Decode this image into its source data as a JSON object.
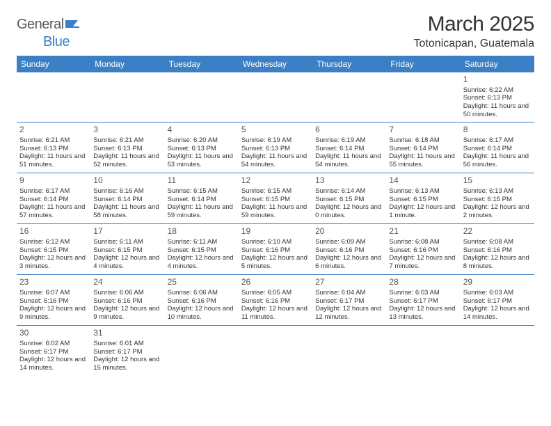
{
  "logo": {
    "text_gray": "General",
    "text_blue": "Blue"
  },
  "title": "March 2025",
  "location": "Totonicapan, Guatemala",
  "colors": {
    "header_bg": "#3b7fc4",
    "header_text": "#ffffff",
    "border": "#3b7fc4",
    "text": "#333333",
    "logo_gray": "#5a5a5a",
    "logo_blue": "#3b7fc4"
  },
  "weekdays": [
    "Sunday",
    "Monday",
    "Tuesday",
    "Wednesday",
    "Thursday",
    "Friday",
    "Saturday"
  ],
  "weeks": [
    [
      null,
      null,
      null,
      null,
      null,
      null,
      {
        "n": "1",
        "sr": "Sunrise: 6:22 AM",
        "ss": "Sunset: 6:13 PM",
        "dl": "Daylight: 11 hours and 50 minutes."
      }
    ],
    [
      {
        "n": "2",
        "sr": "Sunrise: 6:21 AM",
        "ss": "Sunset: 6:13 PM",
        "dl": "Daylight: 11 hours and 51 minutes."
      },
      {
        "n": "3",
        "sr": "Sunrise: 6:21 AM",
        "ss": "Sunset: 6:13 PM",
        "dl": "Daylight: 11 hours and 52 minutes."
      },
      {
        "n": "4",
        "sr": "Sunrise: 6:20 AM",
        "ss": "Sunset: 6:13 PM",
        "dl": "Daylight: 11 hours and 53 minutes."
      },
      {
        "n": "5",
        "sr": "Sunrise: 6:19 AM",
        "ss": "Sunset: 6:13 PM",
        "dl": "Daylight: 11 hours and 54 minutes."
      },
      {
        "n": "6",
        "sr": "Sunrise: 6:19 AM",
        "ss": "Sunset: 6:14 PM",
        "dl": "Daylight: 11 hours and 54 minutes."
      },
      {
        "n": "7",
        "sr": "Sunrise: 6:18 AM",
        "ss": "Sunset: 6:14 PM",
        "dl": "Daylight: 11 hours and 55 minutes."
      },
      {
        "n": "8",
        "sr": "Sunrise: 6:17 AM",
        "ss": "Sunset: 6:14 PM",
        "dl": "Daylight: 11 hours and 56 minutes."
      }
    ],
    [
      {
        "n": "9",
        "sr": "Sunrise: 6:17 AM",
        "ss": "Sunset: 6:14 PM",
        "dl": "Daylight: 11 hours and 57 minutes."
      },
      {
        "n": "10",
        "sr": "Sunrise: 6:16 AM",
        "ss": "Sunset: 6:14 PM",
        "dl": "Daylight: 11 hours and 58 minutes."
      },
      {
        "n": "11",
        "sr": "Sunrise: 6:15 AM",
        "ss": "Sunset: 6:14 PM",
        "dl": "Daylight: 11 hours and 59 minutes."
      },
      {
        "n": "12",
        "sr": "Sunrise: 6:15 AM",
        "ss": "Sunset: 6:15 PM",
        "dl": "Daylight: 11 hours and 59 minutes."
      },
      {
        "n": "13",
        "sr": "Sunrise: 6:14 AM",
        "ss": "Sunset: 6:15 PM",
        "dl": "Daylight: 12 hours and 0 minutes."
      },
      {
        "n": "14",
        "sr": "Sunrise: 6:13 AM",
        "ss": "Sunset: 6:15 PM",
        "dl": "Daylight: 12 hours and 1 minute."
      },
      {
        "n": "15",
        "sr": "Sunrise: 6:13 AM",
        "ss": "Sunset: 6:15 PM",
        "dl": "Daylight: 12 hours and 2 minutes."
      }
    ],
    [
      {
        "n": "16",
        "sr": "Sunrise: 6:12 AM",
        "ss": "Sunset: 6:15 PM",
        "dl": "Daylight: 12 hours and 3 minutes."
      },
      {
        "n": "17",
        "sr": "Sunrise: 6:11 AM",
        "ss": "Sunset: 6:15 PM",
        "dl": "Daylight: 12 hours and 4 minutes."
      },
      {
        "n": "18",
        "sr": "Sunrise: 6:11 AM",
        "ss": "Sunset: 6:15 PM",
        "dl": "Daylight: 12 hours and 4 minutes."
      },
      {
        "n": "19",
        "sr": "Sunrise: 6:10 AM",
        "ss": "Sunset: 6:16 PM",
        "dl": "Daylight: 12 hours and 5 minutes."
      },
      {
        "n": "20",
        "sr": "Sunrise: 6:09 AM",
        "ss": "Sunset: 6:16 PM",
        "dl": "Daylight: 12 hours and 6 minutes."
      },
      {
        "n": "21",
        "sr": "Sunrise: 6:08 AM",
        "ss": "Sunset: 6:16 PM",
        "dl": "Daylight: 12 hours and 7 minutes."
      },
      {
        "n": "22",
        "sr": "Sunrise: 6:08 AM",
        "ss": "Sunset: 6:16 PM",
        "dl": "Daylight: 12 hours and 8 minutes."
      }
    ],
    [
      {
        "n": "23",
        "sr": "Sunrise: 6:07 AM",
        "ss": "Sunset: 6:16 PM",
        "dl": "Daylight: 12 hours and 9 minutes."
      },
      {
        "n": "24",
        "sr": "Sunrise: 6:06 AM",
        "ss": "Sunset: 6:16 PM",
        "dl": "Daylight: 12 hours and 9 minutes."
      },
      {
        "n": "25",
        "sr": "Sunrise: 6:06 AM",
        "ss": "Sunset: 6:16 PM",
        "dl": "Daylight: 12 hours and 10 minutes."
      },
      {
        "n": "26",
        "sr": "Sunrise: 6:05 AM",
        "ss": "Sunset: 6:16 PM",
        "dl": "Daylight: 12 hours and 11 minutes."
      },
      {
        "n": "27",
        "sr": "Sunrise: 6:04 AM",
        "ss": "Sunset: 6:17 PM",
        "dl": "Daylight: 12 hours and 12 minutes."
      },
      {
        "n": "28",
        "sr": "Sunrise: 6:03 AM",
        "ss": "Sunset: 6:17 PM",
        "dl": "Daylight: 12 hours and 13 minutes."
      },
      {
        "n": "29",
        "sr": "Sunrise: 6:03 AM",
        "ss": "Sunset: 6:17 PM",
        "dl": "Daylight: 12 hours and 14 minutes."
      }
    ],
    [
      {
        "n": "30",
        "sr": "Sunrise: 6:02 AM",
        "ss": "Sunset: 6:17 PM",
        "dl": "Daylight: 12 hours and 14 minutes."
      },
      {
        "n": "31",
        "sr": "Sunrise: 6:01 AM",
        "ss": "Sunset: 6:17 PM",
        "dl": "Daylight: 12 hours and 15 minutes."
      },
      null,
      null,
      null,
      null,
      null
    ]
  ]
}
